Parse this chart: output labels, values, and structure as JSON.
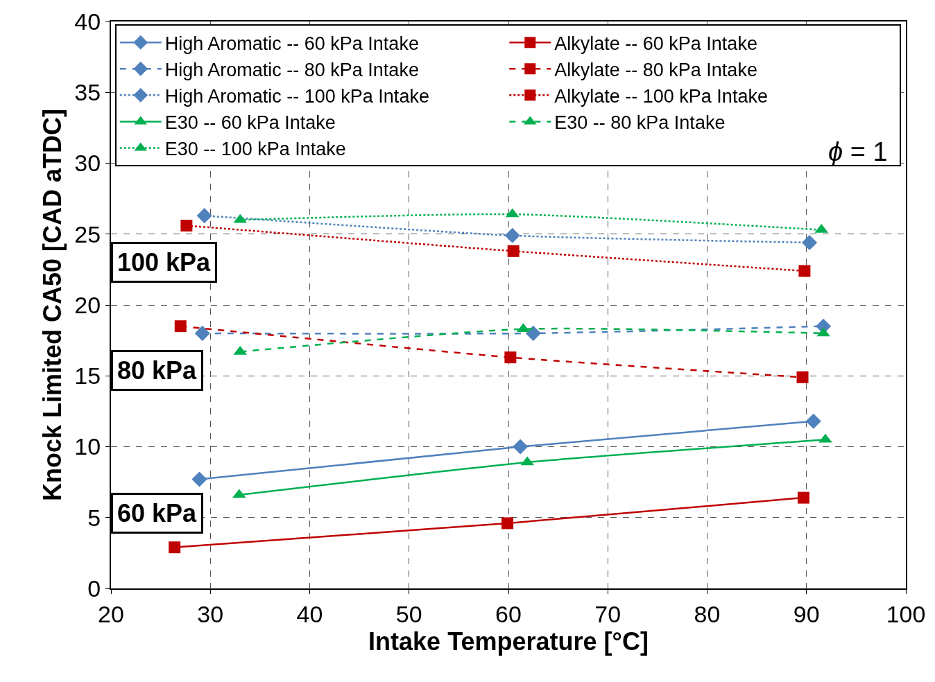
{
  "chart_data": {
    "type": "line",
    "xlabel": "Intake Temperature [°C]",
    "ylabel": "Knock Limited CA50 [CAD aTDC]",
    "xlim": [
      20,
      100
    ],
    "xticks": [
      20,
      30,
      40,
      50,
      60,
      70,
      80,
      90,
      100
    ],
    "ylim": [
      0,
      40
    ],
    "yticks": [
      0,
      5,
      10,
      15,
      20,
      25,
      30,
      35,
      40
    ],
    "grid": true,
    "legend": "top",
    "annotations": [
      "100 kPa",
      "80 kPa",
      "60 kPa",
      "ϕ = 1"
    ],
    "series": [
      {
        "name": "High Aromatic -- 60 kPa Intake",
        "color": "#4f81bd",
        "marker": "diamond",
        "line_style": "solid",
        "x": [
          28.9,
          61.2,
          90.7
        ],
        "values": [
          7.7,
          10.0,
          11.8
        ]
      },
      {
        "name": "Alkylate -- 60 kPa Intake",
        "color": "#c00000",
        "marker": "square",
        "line_style": "solid",
        "x": [
          26.4,
          59.9,
          89.7
        ],
        "values": [
          2.9,
          4.6,
          6.4
        ]
      },
      {
        "name": "High Aromatic -- 80 kPa Intake",
        "color": "#4f81bd",
        "marker": "diamond",
        "line_style": "dashed",
        "x": [
          29.2,
          62.5,
          91.7
        ],
        "values": [
          18.0,
          18.0,
          18.5
        ]
      },
      {
        "name": "Alkylate -- 80 kPa Intake",
        "color": "#c00000",
        "marker": "square",
        "line_style": "dashed",
        "x": [
          27.0,
          60.2,
          89.6
        ],
        "values": [
          18.5,
          16.3,
          14.9
        ]
      },
      {
        "name": "High Aromatic -- 100 kPa Intake",
        "color": "#4f81bd",
        "marker": "diamond",
        "line_style": "dotted",
        "x": [
          29.4,
          60.4,
          90.3
        ],
        "values": [
          26.3,
          24.9,
          24.4
        ]
      },
      {
        "name": "Alkylate -- 100 kPa Intake",
        "color": "#c00000",
        "marker": "square",
        "line_style": "dotted",
        "x": [
          27.6,
          60.5,
          89.8
        ],
        "values": [
          25.6,
          23.8,
          22.4
        ]
      },
      {
        "name": "E30 -- 60 kPa Intake",
        "color": "#00b050",
        "marker": "triangle",
        "line_style": "solid",
        "x": [
          32.9,
          61.9,
          91.9
        ],
        "values": [
          6.6,
          8.9,
          10.5
        ]
      },
      {
        "name": "E30 -- 80 kPa Intake",
        "color": "#00b050",
        "marker": "triangle",
        "line_style": "dashed",
        "x": [
          33.0,
          61.5,
          91.7
        ],
        "values": [
          16.7,
          18.3,
          18.0
        ]
      },
      {
        "name": "E30 -- 100 kPa Intake",
        "color": "#00b050",
        "marker": "triangle",
        "line_style": "dotted",
        "x": [
          33.0,
          60.4,
          91.5
        ],
        "values": [
          26.0,
          26.4,
          25.3
        ]
      }
    ]
  }
}
